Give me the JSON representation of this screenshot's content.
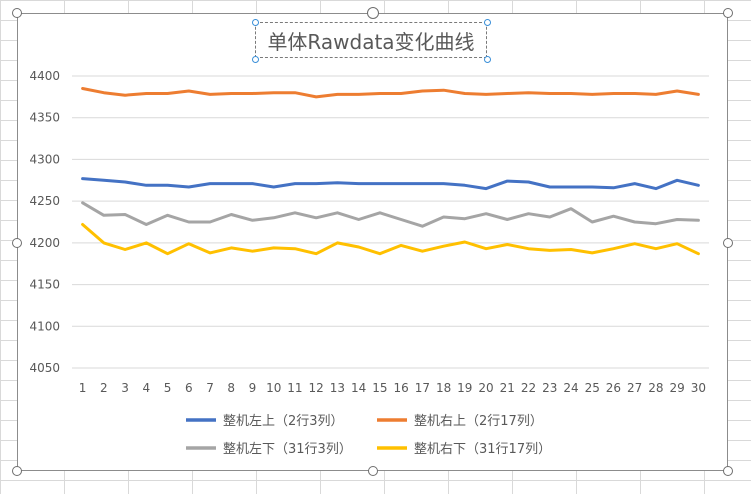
{
  "chart_data": {
    "type": "line",
    "title": "单体Rawdata变化曲线",
    "xlabel": "",
    "ylabel": "",
    "categories": [
      1,
      2,
      3,
      4,
      5,
      6,
      7,
      8,
      9,
      10,
      11,
      12,
      13,
      14,
      15,
      16,
      17,
      18,
      19,
      20,
      21,
      22,
      23,
      24,
      25,
      26,
      27,
      28,
      29,
      30
    ],
    "ylim": [
      4050,
      4400
    ],
    "yticks": [
      4050,
      4100,
      4150,
      4200,
      4250,
      4300,
      4350,
      4400
    ],
    "grid": true,
    "legend_position": "bottom",
    "series": [
      {
        "name": "整机左上（2行3列）",
        "color": "#4472c4",
        "values": [
          4277,
          4275,
          4273,
          4269,
          4269,
          4267,
          4271,
          4271,
          4271,
          4267,
          4271,
          4271,
          4272,
          4271,
          4271,
          4271,
          4271,
          4271,
          4269,
          4265,
          4274,
          4273,
          4267,
          4267,
          4267,
          4266,
          4271,
          4265,
          4275,
          4269
        ]
      },
      {
        "name": "整机右上（2行17列）",
        "color": "#ed7d31",
        "values": [
          4385,
          4380,
          4377,
          4379,
          4379,
          4382,
          4378,
          4379,
          4379,
          4380,
          4380,
          4375,
          4378,
          4378,
          4379,
          4379,
          4382,
          4383,
          4379,
          4378,
          4379,
          4380,
          4379,
          4379,
          4378,
          4379,
          4379,
          4378,
          4382,
          4378
        ]
      },
      {
        "name": "整机左下（31行3列）",
        "color": "#a5a5a5",
        "values": [
          4248,
          4233,
          4234,
          4222,
          4233,
          4225,
          4225,
          4234,
          4227,
          4230,
          4236,
          4230,
          4236,
          4228,
          4236,
          4228,
          4220,
          4231,
          4229,
          4235,
          4228,
          4235,
          4231,
          4241,
          4225,
          4232,
          4225,
          4223,
          4228,
          4227
        ]
      },
      {
        "name": "整机右下（31行17列）",
        "color": "#ffc000",
        "values": [
          4222,
          4200,
          4192,
          4200,
          4187,
          4199,
          4188,
          4194,
          4190,
          4194,
          4193,
          4187,
          4200,
          4195,
          4187,
          4197,
          4190,
          4196,
          4201,
          4193,
          4198,
          4193,
          4191,
          4192,
          4188,
          4193,
          4199,
          4193,
          4199,
          4187
        ]
      }
    ]
  }
}
